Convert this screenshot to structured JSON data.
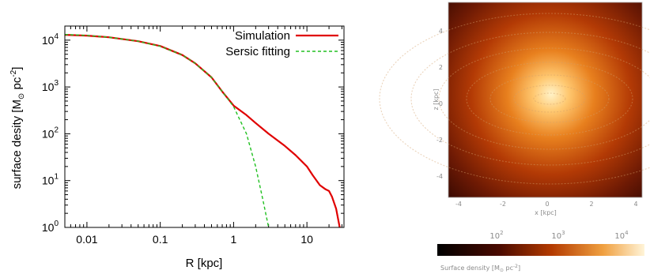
{
  "chart_data": [
    {
      "type": "line",
      "xlabel": "R [kpc]",
      "ylabel_main": "surface desity [M",
      "ylabel_sub": "⊙",
      "ylabel_tail": " pc",
      "ylabel_sup": "-2",
      "ylabel_close": "]",
      "x_scale": "log",
      "y_scale": "log",
      "xlim": [
        0.005,
        32
      ],
      "ylim": [
        1,
        20000
      ],
      "x_ticks": [
        {
          "value": 0.01,
          "label": "0.01"
        },
        {
          "value": 0.1,
          "label": "0.1"
        },
        {
          "value": 1,
          "label": "1"
        },
        {
          "value": 10,
          "label": "10"
        }
      ],
      "y_ticks": [
        {
          "value": 1,
          "base": "10",
          "exp": "0"
        },
        {
          "value": 10,
          "base": "10",
          "exp": "1"
        },
        {
          "value": 100,
          "base": "10",
          "exp": "2"
        },
        {
          "value": 1000,
          "base": "10",
          "exp": "3"
        },
        {
          "value": 10000,
          "base": "10",
          "exp": "4"
        }
      ],
      "legend_position": "top-right",
      "series": [
        {
          "name": "Simulation",
          "color": "#e00000",
          "style": "solid",
          "x": [
            0.005,
            0.01,
            0.02,
            0.05,
            0.1,
            0.2,
            0.3,
            0.5,
            0.7,
            1.0,
            1.5,
            2,
            3,
            5,
            7,
            10,
            12,
            15,
            18,
            20,
            22,
            25,
            28
          ],
          "y": [
            13000,
            12500,
            11500,
            9500,
            7500,
            4800,
            3200,
            1600,
            800,
            400,
            250,
            170,
            100,
            55,
            35,
            20,
            13,
            8,
            6.5,
            6,
            4.5,
            2.5,
            1
          ]
        },
        {
          "name": "Sersic fitting",
          "color": "#20c020",
          "style": "dashed",
          "x": [
            0.005,
            0.01,
            0.02,
            0.05,
            0.1,
            0.2,
            0.3,
            0.5,
            0.7,
            1.0,
            1.5,
            2.0,
            2.5,
            3.0
          ],
          "y": [
            13200,
            12600,
            11500,
            9500,
            7400,
            4800,
            3200,
            1600,
            800,
            380,
            100,
            20,
            4,
            1
          ]
        }
      ]
    },
    {
      "type": "heatmap",
      "colorbar": {
        "tick_labels": [
          "10",
          "10",
          "10"
        ],
        "tick_exps": [
          "2",
          "3",
          "4"
        ],
        "label": "Surface density [M",
        "label_sub": "⊙",
        "label_tail": " pc",
        "label_sup": "-2",
        "label_close": "]"
      },
      "ylabel": "z [kpc]",
      "xlabel": "x [kpc]",
      "y_tick_labels": [
        "4",
        "2",
        "0",
        "-2",
        "-4"
      ],
      "x_tick_labels": [
        "-4",
        "-2",
        "0",
        "2",
        "4"
      ],
      "colors": {
        "low": "#140000",
        "mid": "#b33a00",
        "high": "#fff0c0"
      }
    }
  ]
}
